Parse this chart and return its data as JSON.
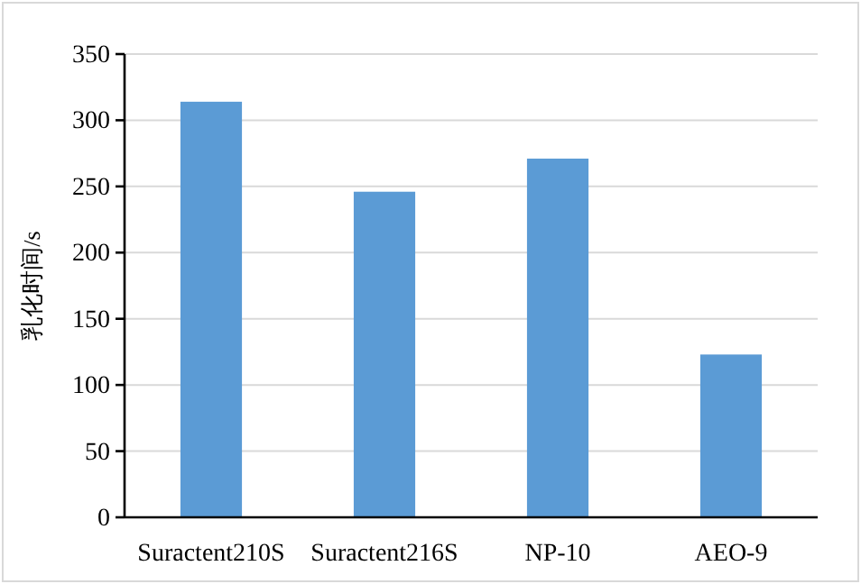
{
  "chart_data": {
    "type": "bar",
    "ylabel": "乳化时间/s",
    "categories": [
      "Suractent210S",
      "Suractent216S",
      "NP-10",
      "AEO-9"
    ],
    "values": [
      314,
      246,
      271,
      123
    ],
    "color": "#5b9bd5",
    "ylim": [
      0,
      350
    ],
    "yticks": [
      0,
      50,
      100,
      150,
      200,
      250,
      300,
      350
    ],
    "grid": "y"
  }
}
